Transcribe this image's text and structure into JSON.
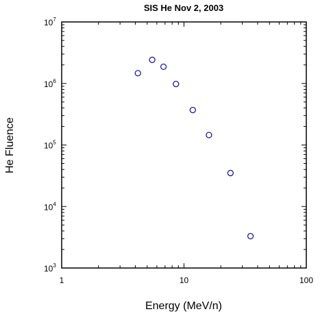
{
  "chart_data": {
    "type": "scatter",
    "title": "SIS He  Nov 2, 2003",
    "xlabel": "Energy (MeV/n)",
    "ylabel": "He Fluence",
    "xscale": "log",
    "yscale": "log",
    "xlim": [
      1,
      100
    ],
    "ylim": [
      1000,
      10000000
    ],
    "x_ticks": [
      "1",
      "10",
      "100"
    ],
    "y_ticks": [
      {
        "base": "10",
        "exp": "3",
        "value": 1000
      },
      {
        "base": "10",
        "exp": "4",
        "value": 10000
      },
      {
        "base": "10",
        "exp": "5",
        "value": 100000
      },
      {
        "base": "10",
        "exp": "6",
        "value": 1000000
      },
      {
        "base": "10",
        "exp": "7",
        "value": 10000000
      }
    ],
    "grid": false,
    "marker": "open-circle",
    "marker_color": "#1a1aa6",
    "series": [
      {
        "points": [
          {
            "x": 4.2,
            "y": 1470000
          },
          {
            "x": 5.5,
            "y": 2420000
          },
          {
            "x": 6.8,
            "y": 1870000
          },
          {
            "x": 8.6,
            "y": 980000
          },
          {
            "x": 11.8,
            "y": 370000
          },
          {
            "x": 16.0,
            "y": 145000
          },
          {
            "x": 24.0,
            "y": 35000
          },
          {
            "x": 35.0,
            "y": 3300
          }
        ]
      }
    ]
  }
}
